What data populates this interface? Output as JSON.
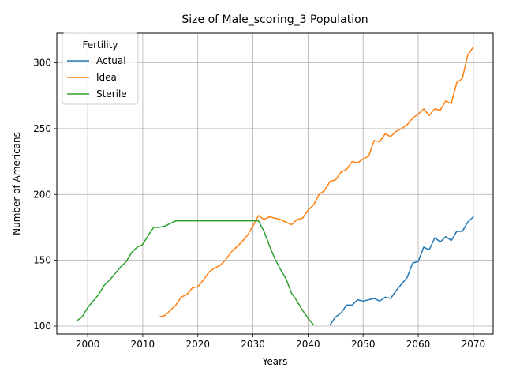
{
  "chart_data": {
    "type": "line",
    "title": "Size of Male_scoring_3 Population",
    "xlabel": "Years",
    "ylabel": "Number of Americans",
    "xlim": [
      1994.4,
      2073.6
    ],
    "ylim": [
      94,
      322.5
    ],
    "xticks": [
      2000,
      2010,
      2020,
      2030,
      2040,
      2050,
      2060,
      2070
    ],
    "yticks": [
      100,
      150,
      200,
      250,
      300
    ],
    "grid": true,
    "legend": {
      "title": "Fertility",
      "placement": "upper-left"
    },
    "series": [
      {
        "name": "Actual",
        "color": "#1f77b4",
        "x": [
          2044,
          2045,
          2046,
          2047,
          2048,
          2049,
          2050,
          2051,
          2052,
          2053,
          2054,
          2055,
          2056,
          2057,
          2058,
          2059,
          2060,
          2061,
          2062,
          2063,
          2064,
          2065,
          2066,
          2067,
          2068,
          2069,
          2070
        ],
        "y": [
          101,
          107,
          110,
          116,
          116,
          120,
          119,
          120,
          121,
          119,
          122,
          121,
          127,
          132,
          137,
          148,
          149,
          160,
          158,
          167,
          164,
          168,
          165,
          172,
          172,
          179,
          183
        ]
      },
      {
        "name": "Ideal",
        "color": "#ff7f0e",
        "x": [
          2013,
          2014,
          2015,
          2016,
          2017,
          2018,
          2019,
          2020,
          2021,
          2022,
          2023,
          2024,
          2025,
          2026,
          2027,
          2028,
          2029,
          2030,
          2031,
          2032,
          2033,
          2034,
          2035,
          2036,
          2037,
          2038,
          2039,
          2040,
          2041,
          2042,
          2043,
          2044,
          2045,
          2046,
          2047,
          2048,
          2049,
          2050,
          2051,
          2052,
          2053,
          2054,
          2055,
          2056,
          2057,
          2058,
          2059,
          2060,
          2061,
          2062,
          2063,
          2064,
          2065,
          2066,
          2067,
          2068,
          2069,
          2070
        ],
        "y": [
          107,
          108,
          112,
          116,
          122,
          124,
          129,
          130,
          135,
          141,
          144,
          146,
          150,
          156,
          160,
          164,
          169,
          176,
          184,
          181,
          183,
          182,
          181,
          179,
          177,
          181,
          182,
          188,
          192,
          200,
          203,
          210,
          211,
          217,
          219,
          225,
          224,
          227,
          229,
          241,
          240,
          246,
          244,
          248,
          250,
          253,
          258,
          261,
          265,
          260,
          265,
          264,
          271,
          269,
          285,
          288,
          306,
          312
        ]
      },
      {
        "name": "Sterile",
        "color": "#2ca02c",
        "x": [
          1998,
          1999,
          2000,
          2001,
          2002,
          2003,
          2004,
          2005,
          2006,
          2007,
          2008,
          2009,
          2010,
          2011,
          2012,
          2013,
          2014,
          2015,
          2016,
          2017,
          2018,
          2019,
          2020,
          2021,
          2022,
          2023,
          2024,
          2025,
          2026,
          2027,
          2028,
          2029,
          2030,
          2031,
          2032,
          2033,
          2034,
          2035,
          2036,
          2037,
          2038,
          2039,
          2040,
          2041
        ],
        "y": [
          104,
          107,
          114,
          119,
          124,
          131,
          135,
          140,
          145,
          149,
          156,
          160,
          162,
          169,
          175,
          175,
          176,
          178,
          180,
          180,
          180,
          180,
          180,
          180,
          180,
          180,
          180,
          180,
          180,
          180,
          180,
          180,
          180,
          180,
          172,
          161,
          151,
          143,
          136,
          125,
          119,
          112,
          106,
          101
        ]
      }
    ]
  }
}
